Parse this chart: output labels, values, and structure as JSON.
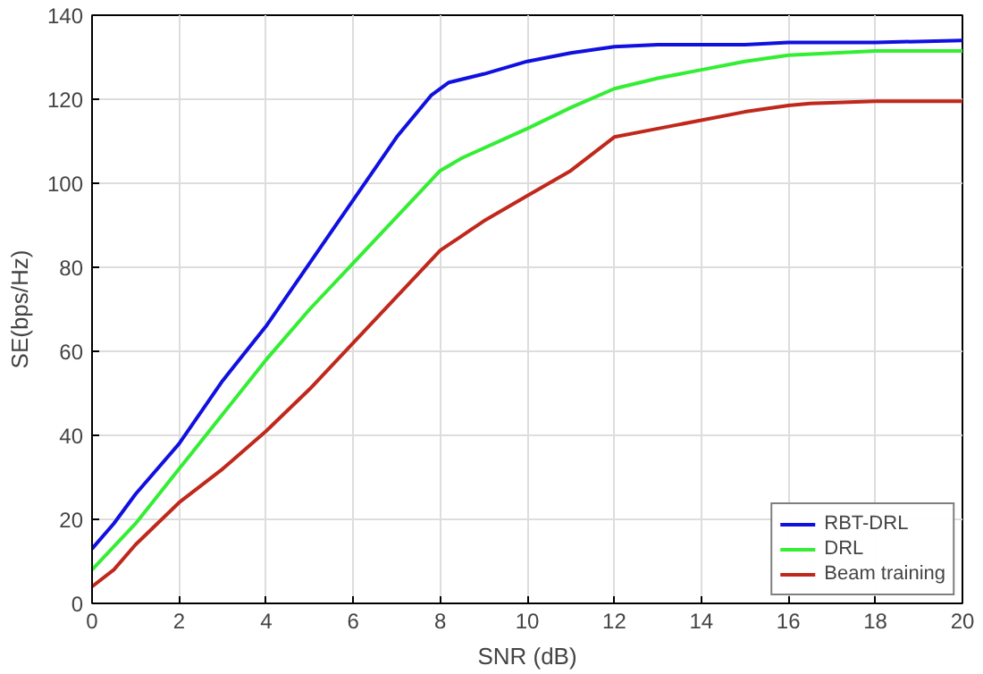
{
  "chart_data": {
    "type": "line",
    "xlabel": "SNR (dB)",
    "ylabel": "SE(bps/Hz)",
    "xlim": [
      0,
      20
    ],
    "ylim": [
      0,
      140
    ],
    "xticks": [
      0,
      2,
      4,
      6,
      8,
      10,
      12,
      14,
      16,
      18,
      20
    ],
    "yticks": [
      0,
      20,
      40,
      60,
      80,
      100,
      120,
      140
    ],
    "grid": true,
    "legend": "bottom right",
    "line_style": "solid",
    "marker": "none",
    "series": [
      {
        "name": "RBT-DRL",
        "color": "#1010e0",
        "x": [
          0,
          0.5,
          1,
          2,
          3,
          4,
          5,
          6,
          7,
          7.8,
          8.2,
          9,
          10,
          11,
          12,
          13,
          15,
          16,
          18,
          20
        ],
        "values": [
          13,
          19,
          26,
          38,
          53,
          66,
          81,
          96,
          111,
          121,
          124,
          126,
          129,
          131,
          132.5,
          133,
          133,
          133.5,
          133.5,
          134
        ]
      },
      {
        "name": "DRL",
        "color": "#33ee33",
        "x": [
          0,
          1,
          2,
          3,
          4,
          5,
          6,
          7,
          8,
          8.5,
          10,
          11,
          12,
          13,
          14,
          15,
          16,
          18,
          20
        ],
        "values": [
          8,
          19,
          32,
          45,
          58,
          70,
          81,
          92,
          103,
          106,
          113,
          118,
          122.5,
          125,
          127,
          129,
          130.5,
          131.5,
          131.5
        ]
      },
      {
        "name": "Beam training",
        "color": "#c0281c",
        "x": [
          0,
          0.5,
          1,
          2,
          3,
          4,
          5,
          6,
          7,
          8,
          9,
          10,
          11,
          11.5,
          12,
          13,
          14,
          15,
          16,
          16.5,
          18,
          20
        ],
        "values": [
          4,
          8,
          14,
          24,
          32,
          41,
          51,
          62,
          73,
          84,
          91,
          97,
          103,
          107,
          111,
          113,
          115,
          117,
          118.5,
          119,
          119.5,
          119.5
        ]
      }
    ]
  }
}
